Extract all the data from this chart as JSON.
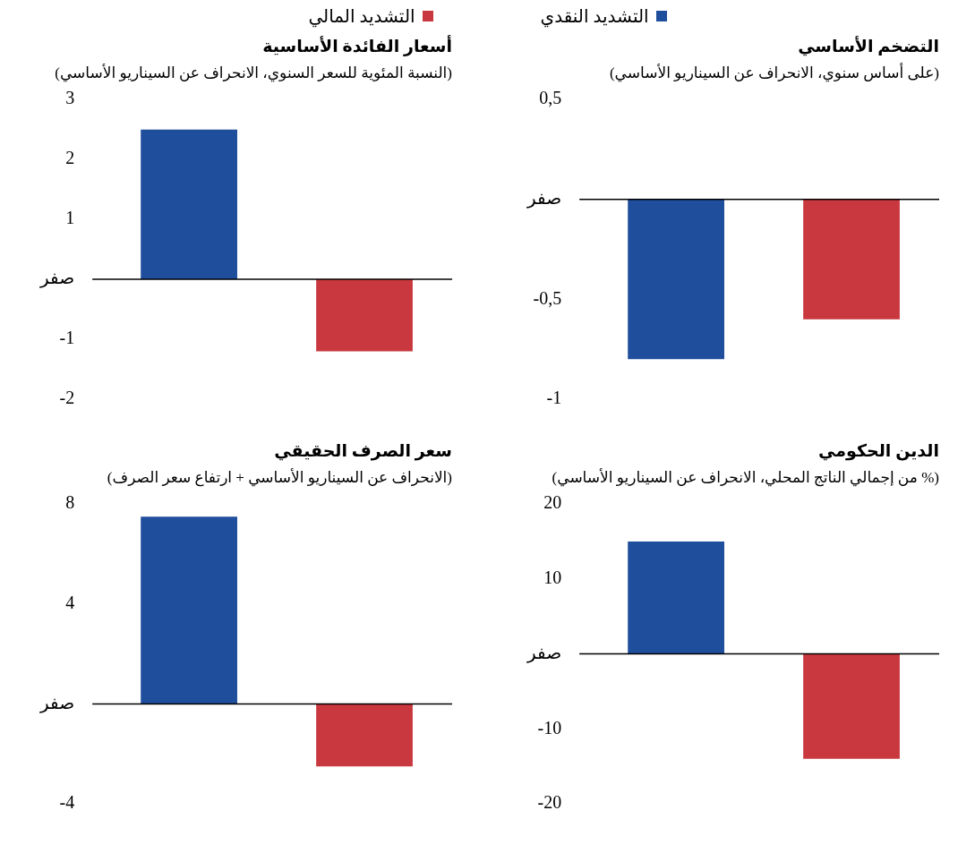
{
  "chart_data": [
    {
      "type": "bar",
      "title": "التضخم الأساسي",
      "subtitle": "(على أساس سنوي، الانحراف عن السيناريو الأساسي)",
      "categories": [
        null,
        null
      ],
      "series": [
        {
          "name": "التشديد النقدي",
          "color": "#1f4e9c",
          "values": [
            -0.8,
            null
          ]
        },
        {
          "name": "التشديد المالي",
          "color": "#c9383e",
          "values": [
            null,
            -0.6
          ]
        }
      ],
      "ylim": [
        -1,
        0.5
      ],
      "yticks": [
        {
          "value": 0.5,
          "label": "0,5"
        },
        {
          "value": 0,
          "label": "صفر"
        },
        {
          "value": -0.5,
          "label": "0,5-"
        },
        {
          "value": -1,
          "label": "1-"
        }
      ],
      "ref_lines": [
        {
          "axis": "y",
          "value": 0,
          "color": "#000000"
        }
      ],
      "grid": false,
      "legend": "top",
      "tick_labels": "y"
    },
    {
      "type": "bar",
      "title": "أسعار الفائدة الأساسية",
      "subtitle": "(النسبة المئوية للسعر السنوي، الانحراف عن السيناريو الأساسي)",
      "categories": [
        null,
        null
      ],
      "series": [
        {
          "color": "#1f4e9c",
          "values": [
            2.5,
            null
          ]
        },
        {
          "color": "#c9383e",
          "values": [
            null,
            -1.2
          ]
        }
      ],
      "ylim": [
        -2,
        3
      ],
      "yticks": [
        3,
        2,
        1,
        {
          "value": 0,
          "label": "صفر"
        },
        {
          "value": -1,
          "label": "1-"
        },
        {
          "value": -2,
          "label": "2-"
        }
      ],
      "ref_lines": [
        {
          "axis": "y",
          "value": 0,
          "color": "#000000"
        }
      ],
      "grid": false,
      "legend": false,
      "tick_labels": "y"
    },
    {
      "type": "bar",
      "title": "الدين الحكومي",
      "subtitle": "(% من إجمالي الناتج المحلي، الانحراف عن السيناريو الأساسي)",
      "categories": [
        null,
        null
      ],
      "series": [
        {
          "color": "#1f4e9c",
          "values": [
            15,
            null
          ]
        },
        {
          "color": "#c9383e",
          "values": [
            null,
            -14
          ]
        }
      ],
      "ylim": [
        -20,
        20
      ],
      "yticks": [
        20,
        10,
        {
          "value": 0,
          "label": "صفر"
        },
        {
          "value": -10,
          "label": "10-"
        },
        {
          "value": -20,
          "label": "20-"
        }
      ],
      "ref_lines": [
        {
          "axis": "y",
          "value": 0,
          "color": "#000000"
        }
      ],
      "grid": false,
      "legend": false,
      "tick_labels": "y"
    },
    {
      "type": "bar",
      "title": "سعر الصرف الحقيقي",
      "subtitle": "(الانحراف عن السيناريو الأساسي + ارتفاع سعر الصرف)",
      "categories": [
        null,
        null
      ],
      "series": [
        {
          "color": "#1f4e9c",
          "values": [
            7.5,
            null
          ]
        },
        {
          "color": "#c9383e",
          "values": [
            null,
            -2.5
          ]
        }
      ],
      "ylim": [
        -4,
        8
      ],
      "yticks": [
        8,
        4,
        {
          "value": 0,
          "label": "صفر"
        },
        {
          "value": -4,
          "label": "4-"
        }
      ],
      "ref_lines": [
        {
          "axis": "y",
          "value": 0,
          "color": "#000000"
        }
      ],
      "grid": false,
      "legend": false,
      "tick_labels": "y"
    }
  ]
}
